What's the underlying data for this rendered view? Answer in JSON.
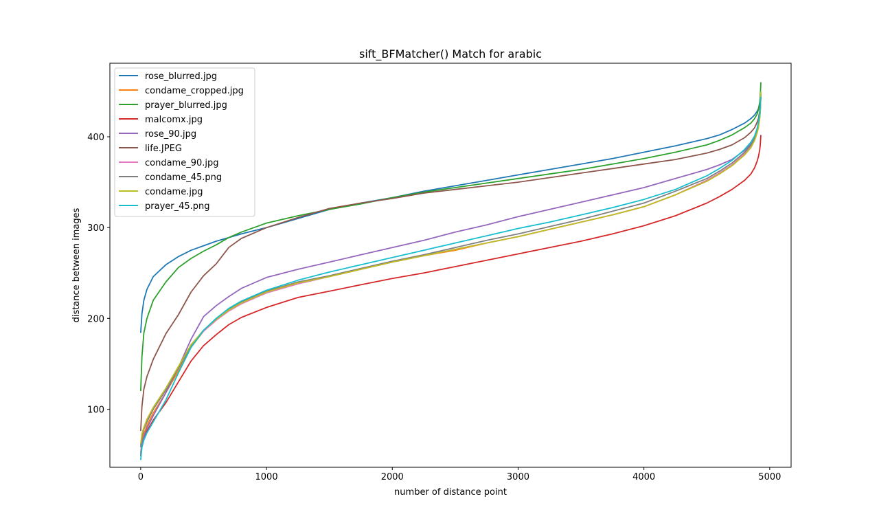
{
  "chart_data": {
    "type": "line",
    "title": "sift_BFMatcher() Match for arabic",
    "xlabel": "number of distance point",
    "ylabel": "distance between images",
    "xlim": [
      -245,
      5170
    ],
    "ylim": [
      36,
      481
    ],
    "xticks": [
      0,
      1000,
      2000,
      3000,
      4000,
      5000
    ],
    "yticks": [
      100,
      200,
      300,
      400
    ],
    "grid": false,
    "legend_position": "upper-left",
    "x": [
      0,
      10,
      25,
      50,
      100,
      200,
      300,
      400,
      500,
      600,
      700,
      800,
      1000,
      1250,
      1500,
      1750,
      2000,
      2250,
      2500,
      2750,
      3000,
      3250,
      3500,
      3750,
      4000,
      4250,
      4500,
      4600,
      4700,
      4800,
      4850,
      4880,
      4900,
      4910,
      4920,
      4925,
      4930
    ],
    "series": [
      {
        "name": "rose_blurred.jpg",
        "color": "#1f77b4",
        "values": [
          184,
          205,
          220,
          232,
          246,
          259,
          268,
          275,
          280,
          285,
          289,
          293,
          300,
          310,
          320,
          327,
          333,
          340,
          346,
          352,
          358,
          364,
          370,
          376,
          383,
          390,
          398,
          402,
          408,
          415,
          420,
          424,
          428,
          431,
          437,
          441,
          444
        ]
      },
      {
        "name": "condame_cropped.jpg",
        "color": "#ff7f0e",
        "values": [
          52,
          64,
          73,
          82,
          96,
          118,
          142,
          168,
          186,
          198,
          209,
          217,
          229,
          239,
          246,
          254,
          262,
          269,
          275,
          283,
          290,
          298,
          306,
          314,
          323,
          336,
          352,
          360,
          369,
          381,
          389,
          397,
          405,
          411,
          420,
          428,
          446
        ]
      },
      {
        "name": "prayer_blurred.jpg",
        "color": "#2ca02c",
        "values": [
          120,
          158,
          184,
          200,
          220,
          240,
          256,
          266,
          274,
          281,
          289,
          295,
          305,
          313,
          320,
          326,
          333,
          339,
          344,
          349,
          354,
          359,
          364,
          370,
          376,
          383,
          391,
          396,
          402,
          410,
          415,
          420,
          425,
          430,
          436,
          445,
          460
        ]
      },
      {
        "name": "malcomx.jpg",
        "color": "#d62728",
        "values": [
          48,
          60,
          68,
          76,
          88,
          107,
          130,
          153,
          170,
          182,
          193,
          201,
          212,
          223,
          230,
          237,
          244,
          250,
          257,
          264,
          271,
          278,
          285,
          293,
          302,
          313,
          327,
          334,
          342,
          352,
          359,
          366,
          373,
          378,
          385,
          391,
          402
        ]
      },
      {
        "name": "rose_90.jpg",
        "color": "#9467bd",
        "values": [
          50,
          62,
          70,
          79,
          93,
          118,
          146,
          177,
          202,
          214,
          224,
          233,
          245,
          254,
          262,
          270,
          278,
          286,
          295,
          303,
          312,
          320,
          328,
          336,
          344,
          354,
          364,
          369,
          375,
          385,
          392,
          398,
          405,
          412,
          421,
          430,
          447
        ]
      },
      {
        "name": "life.JPEG",
        "color": "#8c564b",
        "values": [
          76,
          103,
          122,
          136,
          155,
          183,
          204,
          229,
          247,
          260,
          278,
          288,
          300,
          311,
          321,
          327,
          332,
          338,
          342,
          346,
          350,
          355,
          360,
          365,
          370,
          375,
          382,
          386,
          391,
          399,
          405,
          410,
          416,
          420,
          428,
          436,
          447
        ]
      },
      {
        "name": "condame_90.jpg",
        "color": "#e377c2",
        "values": [
          60,
          71,
          79,
          87,
          101,
          122,
          146,
          170,
          186,
          198,
          208,
          216,
          228,
          238,
          246,
          254,
          262,
          269,
          276,
          283,
          290,
          298,
          306,
          314,
          323,
          336,
          352,
          360,
          369,
          381,
          389,
          397,
          405,
          411,
          420,
          428,
          446
        ]
      },
      {
        "name": "condame_45.png",
        "color": "#7f7f7f",
        "values": [
          58,
          70,
          78,
          86,
          100,
          121,
          145,
          170,
          187,
          199,
          210,
          218,
          230,
          240,
          247,
          255,
          263,
          270,
          278,
          286,
          293,
          301,
          309,
          318,
          327,
          340,
          354,
          362,
          371,
          383,
          391,
          399,
          406,
          412,
          421,
          429,
          447
        ]
      },
      {
        "name": "condame.jpg",
        "color": "#bcbd22",
        "values": [
          62,
          73,
          80,
          89,
          102,
          123,
          147,
          171,
          187,
          199,
          209,
          217,
          229,
          239,
          246,
          254,
          262,
          269,
          276,
          283,
          290,
          298,
          306,
          314,
          323,
          336,
          351,
          359,
          368,
          380,
          388,
          396,
          404,
          410,
          420,
          428,
          450
        ]
      },
      {
        "name": "prayer_45.png",
        "color": "#17becf",
        "values": [
          44,
          58,
          66,
          74,
          86,
          110,
          140,
          168,
          187,
          200,
          211,
          219,
          231,
          242,
          251,
          259,
          267,
          275,
          283,
          291,
          299,
          306,
          314,
          322,
          331,
          342,
          357,
          365,
          374,
          386,
          394,
          401,
          409,
          416,
          425,
          433,
          444
        ]
      }
    ]
  }
}
